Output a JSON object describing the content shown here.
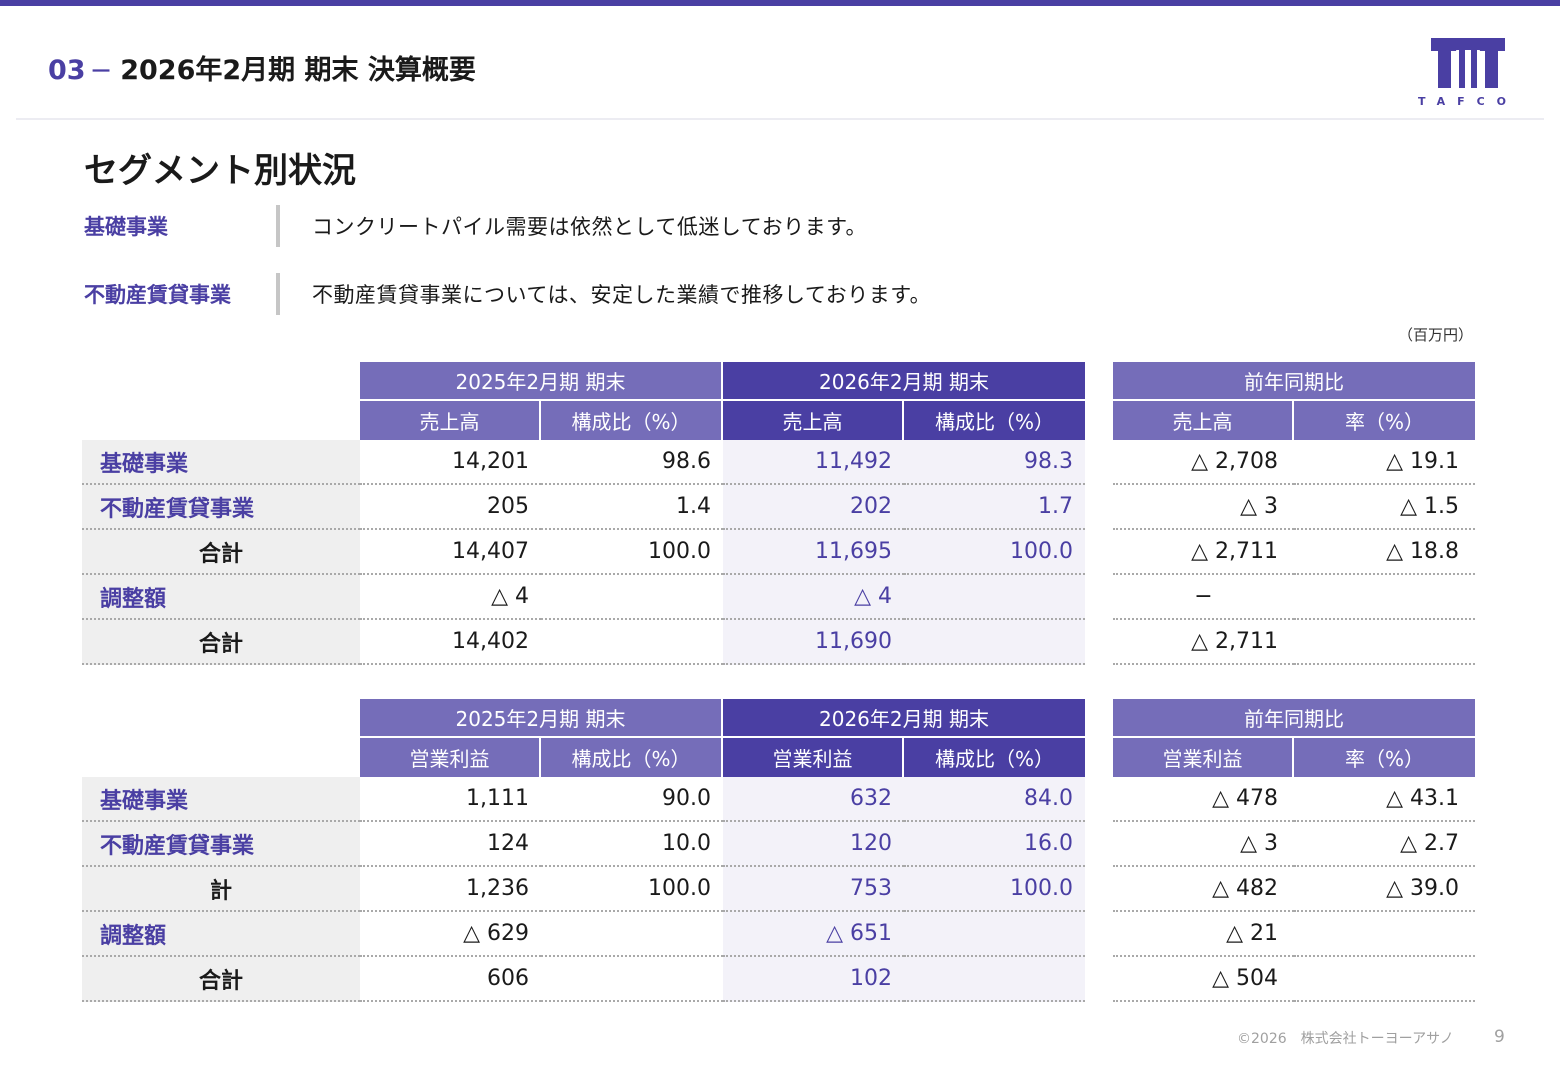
{
  "header": {
    "section_number": "03",
    "dash": "−",
    "title": "2026年2月期 期末 決算概要"
  },
  "logo": {
    "text": "TAFCO",
    "color": "#4a3fa3"
  },
  "section_title": "セグメント別状況",
  "segments": [
    {
      "label": "基礎事業",
      "text": "コンクリートパイル需要は依然として低迷しております。"
    },
    {
      "label": "不動産賃貸事業",
      "text": "不動産賃貸事業については、安定した業績で推移しております。"
    }
  ],
  "unit": "（百万円）",
  "sales_table": {
    "period_headers": [
      "2025年2月期 期末",
      "2026年2月期 期末",
      "前年同期比"
    ],
    "sub_headers": [
      "売上高",
      "構成比（%）",
      "売上高",
      "構成比（%）",
      "売上高",
      "率（%）"
    ],
    "rows": [
      {
        "label": "基礎事業",
        "total": false,
        "v": [
          "14,201",
          "98.6",
          "11,492",
          "98.3",
          "△ 2,708",
          "△ 19.1"
        ]
      },
      {
        "label": "不動産賃貸事業",
        "total": false,
        "v": [
          "205",
          "1.4",
          "202",
          "1.7",
          "△ 3",
          "△ 1.5"
        ]
      },
      {
        "label": "合計",
        "total": true,
        "v": [
          "14,407",
          "100.0",
          "11,695",
          "100.0",
          "△ 2,711",
          "△ 18.8"
        ]
      },
      {
        "label": "調整額",
        "total": false,
        "v": [
          "△ 4",
          "",
          "△ 4",
          "",
          "−",
          ""
        ]
      },
      {
        "label": "合計",
        "total": true,
        "v": [
          "14,402",
          "",
          "11,690",
          "",
          "△ 2,711",
          ""
        ]
      }
    ]
  },
  "profit_table": {
    "period_headers": [
      "2025年2月期 期末",
      "2026年2月期 期末",
      "前年同期比"
    ],
    "sub_headers": [
      "営業利益",
      "構成比（%）",
      "営業利益",
      "構成比（%）",
      "営業利益",
      "率（%）"
    ],
    "rows": [
      {
        "label": "基礎事業",
        "total": false,
        "v": [
          "1,111",
          "90.0",
          "632",
          "84.0",
          "△ 478",
          "△ 43.1"
        ]
      },
      {
        "label": "不動産賃貸事業",
        "total": false,
        "v": [
          "124",
          "10.0",
          "120",
          "16.0",
          "△ 3",
          "△ 2.7"
        ]
      },
      {
        "label": "計",
        "total": true,
        "v": [
          "1,236",
          "100.0",
          "753",
          "100.0",
          "△ 482",
          "△ 39.0"
        ]
      },
      {
        "label": "調整額",
        "total": false,
        "v": [
          "△ 629",
          "",
          "△ 651",
          "",
          "△ 21",
          ""
        ]
      },
      {
        "label": "合計",
        "total": true,
        "v": [
          "606",
          "",
          "102",
          "",
          "△ 504",
          ""
        ]
      }
    ]
  },
  "footer": {
    "copyright": "©2026　株式会社トーヨーアサノ",
    "page_number": "9"
  }
}
